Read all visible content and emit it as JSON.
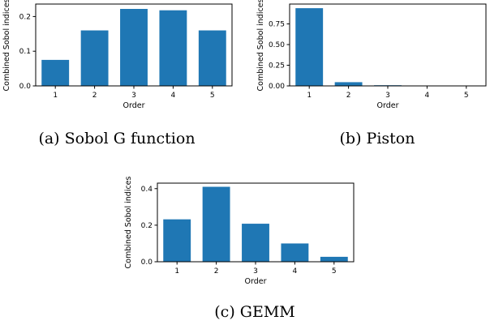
{
  "chart_data": [
    {
      "type": "bar",
      "caption": "(a) Sobol G function",
      "xlabel": "Order",
      "ylabel": "Combined Sobol indices",
      "categories": [
        "1",
        "2",
        "3",
        "4",
        "5"
      ],
      "values": [
        0.075,
        0.16,
        0.222,
        0.218,
        0.16
      ],
      "ylim": [
        0,
        0.236
      ],
      "yticks": [
        0.0,
        0.1,
        0.2
      ],
      "ytick_labels": [
        "0.0",
        "0.1",
        "0.2"
      ],
      "color": "#1f77b4",
      "grid": false
    },
    {
      "type": "bar",
      "caption": "(b) Piston",
      "xlabel": "Order",
      "ylabel": "Combined Sobol indices",
      "categories": [
        "1",
        "2",
        "3",
        "4",
        "5"
      ],
      "values": [
        0.94,
        0.045,
        0.008,
        0.002,
        0.001
      ],
      "ylim": [
        0,
        0.99
      ],
      "yticks": [
        0.0,
        0.25,
        0.5,
        0.75
      ],
      "ytick_labels": [
        "0.00",
        "0.25",
        "0.50",
        "0.75"
      ],
      "color": "#1f77b4",
      "grid": false
    },
    {
      "type": "bar",
      "caption": "(c) GEMM",
      "xlabel": "Order",
      "ylabel": "Combined Sobol indices",
      "categories": [
        "1",
        "2",
        "3",
        "4",
        "5"
      ],
      "values": [
        0.232,
        0.41,
        0.208,
        0.1,
        0.027
      ],
      "ylim": [
        0,
        0.43
      ],
      "yticks": [
        0.0,
        0.2,
        0.4
      ],
      "ytick_labels": [
        "0.0",
        "0.2",
        "0.4"
      ],
      "color": "#1f77b4",
      "grid": false
    }
  ]
}
